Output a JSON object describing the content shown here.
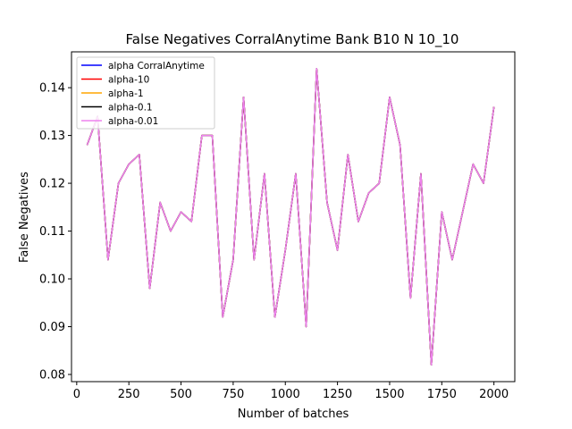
{
  "chart_data": {
    "type": "line",
    "title": "False Negatives CorralAnytime Bank B10 N 10_10",
    "xlabel": "Number of batches",
    "ylabel": "False Negatives",
    "xlim": [
      -25,
      2100
    ],
    "ylim": [
      0.0785,
      0.1475
    ],
    "xticks": [
      0,
      250,
      500,
      750,
      1000,
      1250,
      1500,
      1750,
      2000
    ],
    "yticks": [
      0.08,
      0.09,
      0.1,
      0.11,
      0.12,
      0.13,
      0.14
    ],
    "ytick_labels": [
      "0.08",
      "0.09",
      "0.10",
      "0.11",
      "0.12",
      "0.13",
      "0.14"
    ],
    "grid": false,
    "legend_position": "top-left",
    "x": [
      50,
      100,
      150,
      200,
      250,
      300,
      350,
      400,
      450,
      500,
      550,
      600,
      650,
      700,
      750,
      800,
      850,
      900,
      950,
      1000,
      1050,
      1100,
      1150,
      1200,
      1250,
      1300,
      1350,
      1400,
      1450,
      1500,
      1550,
      1600,
      1650,
      1700,
      1750,
      1800,
      1850,
      1900,
      1950,
      2000
    ],
    "y": [
      0.128,
      0.134,
      0.104,
      0.12,
      0.124,
      0.126,
      0.098,
      0.116,
      0.11,
      0.114,
      0.112,
      0.13,
      0.13,
      0.092,
      0.104,
      0.138,
      0.104,
      0.122,
      0.092,
      0.106,
      0.122,
      0.09,
      0.144,
      0.116,
      0.106,
      0.126,
      0.112,
      0.118,
      0.12,
      0.138,
      0.128,
      0.096,
      0.122,
      0.082,
      0.114,
      0.104,
      0.114,
      0.124,
      0.12,
      0.136
    ],
    "series": [
      {
        "name": "alpha CorralAnytime",
        "color": "#0000ff"
      },
      {
        "name": "alpha-10",
        "color": "#ff0000"
      },
      {
        "name": "alpha-1",
        "color": "#ffa500"
      },
      {
        "name": "alpha-0.1",
        "color": "#000000"
      },
      {
        "name": "alpha-0.01",
        "color": "#ee82ee"
      }
    ]
  }
}
